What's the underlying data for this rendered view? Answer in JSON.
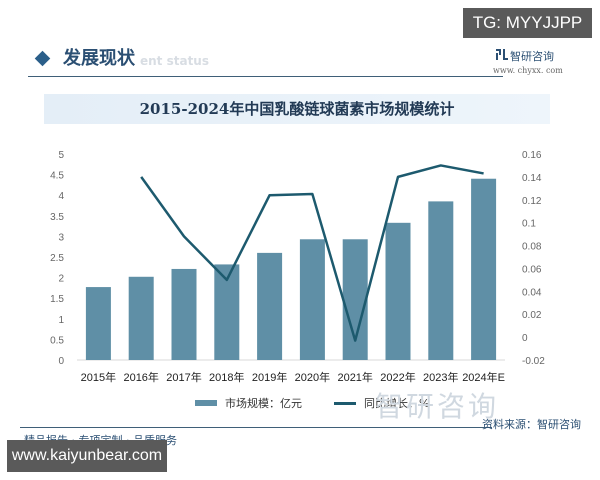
{
  "watermark_top": "TG: MYYJJPP",
  "header": {
    "title": "发展现状",
    "subtitle": "ent status",
    "brand": "智研咨询",
    "brand_url": "www. chyxx. com"
  },
  "chart_title": "2015-2024年中国乳酸链球菌素市场规模统计",
  "legend": {
    "bar_label": "市场规模：亿元",
    "line_label": "同比增长：%"
  },
  "footer": {
    "slogan": "精品报告 · 专项定制 · 品质服务",
    "source": "资料来源：智研咨询",
    "watermark_brand": "智研咨询",
    "url_box": "www.kaiyunbear.com"
  },
  "colors": {
    "bar": "#5f8fa6",
    "line": "#1d5a6e",
    "title_bg": "#e6f0f8",
    "header": "#2b4f73"
  },
  "chart_data": {
    "type": "bar",
    "title": "2015-2024年中国乳酸链球菌素市场规模统计",
    "categories": [
      "2015年",
      "2016年",
      "2017年",
      "2018年",
      "2019年",
      "2020年",
      "2021年",
      "2022年",
      "2023年",
      "2024年E"
    ],
    "series": [
      {
        "name": "市场规模：亿元",
        "type": "bar",
        "axis": "left",
        "values": [
          1.77,
          2.02,
          2.21,
          2.32,
          2.6,
          2.93,
          2.93,
          3.33,
          3.85,
          4.4
        ]
      },
      {
        "name": "同比增长：%",
        "type": "line",
        "axis": "right",
        "values": [
          null,
          0.14,
          0.088,
          0.05,
          0.124,
          0.125,
          -0.003,
          0.14,
          0.15,
          0.143
        ]
      }
    ],
    "left_axis": {
      "ticks": [
        "0",
        "0.5",
        "1",
        "1.5",
        "2",
        "2.5",
        "3",
        "3.5",
        "4",
        "4.5",
        "5"
      ],
      "ylim": [
        0,
        5
      ]
    },
    "right_axis": {
      "ticks": [
        "-0.02",
        "0",
        "0.02",
        "0.04",
        "0.06",
        "0.08",
        "0.1",
        "0.12",
        "0.14",
        "0.16"
      ],
      "ylim": [
        -0.02,
        0.16
      ]
    },
    "grid": false,
    "legend_position": "bottom"
  }
}
